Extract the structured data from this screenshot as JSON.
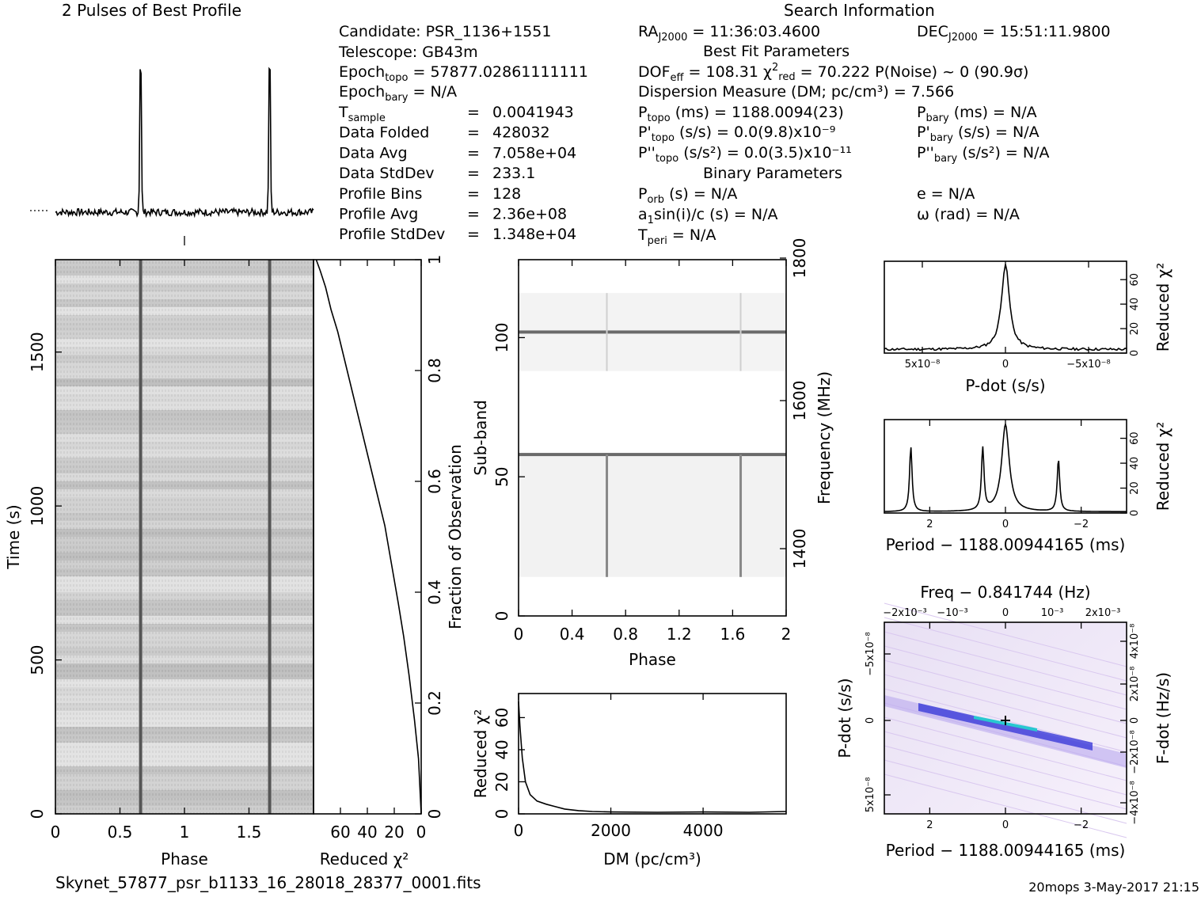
{
  "footer": {
    "filename": "Skynet_57877_psr_b1133_16_28018_28377_0001.fits",
    "stamp": "20mops  3-May-2017 21:15"
  },
  "search_info": {
    "heading": "Search Information",
    "candidate": "Candidate:  PSR_1136+1551",
    "telescope": "Telescope:  GB43m",
    "epoch_topo": "57877.02861111111",
    "epoch_bary": "N/A",
    "rows": [
      {
        "label": "T_sample",
        "value": "0.0041943"
      },
      {
        "label": "Data Folded",
        "value": "428032"
      },
      {
        "label": "Data Avg",
        "value": "7.058e+04"
      },
      {
        "label": "Data StdDev",
        "value": "233.1"
      },
      {
        "label": "Profile Bins",
        "value": "128"
      },
      {
        "label": "Profile Avg",
        "value": "2.36e+08"
      },
      {
        "label": "Profile StdDev",
        "value": "1.348e+04"
      }
    ],
    "ra": "11:36:03.4600",
    "dec": "15:51:11.9800",
    "best_fit_heading": "Best Fit Parameters",
    "dof_eff": "108.31",
    "chi2_red": "70.222",
    "p_noise": "P(Noise) ~ 0   (90.9σ)",
    "dm_line": "Dispersion Measure (DM; pc/cm³) = 7.566",
    "p_topo": "1188.0094(23)",
    "p_bary": "N/A",
    "pdot_topo": "0.0(9.8)x10⁻⁹",
    "pdot_bary": "N/A",
    "pddot_topo": "0.0(3.5)x10⁻¹¹",
    "pddot_bary": "N/A",
    "binary_heading": "Binary Parameters",
    "p_orb": "N/A",
    "a1sini": "N/A",
    "t_peri": "N/A",
    "ecc": "N/A",
    "omega": "N/A"
  },
  "chart_data": [
    {
      "id": "profile",
      "type": "line",
      "title": "2 Pulses of Best Profile",
      "xlabel": "",
      "ylabel": "",
      "xlim": [
        0,
        2
      ],
      "peaks": [
        {
          "phase": 0.66,
          "height": 1.0
        },
        {
          "phase": 1.66,
          "height": 1.0
        }
      ],
      "baseline": 0.0
    },
    {
      "id": "time-phase",
      "type": "heatmap",
      "xlabel": "Phase",
      "ylabel": "Time (s)",
      "xlim": [
        0,
        2
      ],
      "ylim": [
        0,
        1800
      ],
      "xticks": [
        "0",
        "0.5",
        "1",
        "1.5"
      ],
      "yticks": [
        "0",
        "500",
        "1000",
        "1500"
      ],
      "pulse_phases": [
        0.66,
        1.66
      ]
    },
    {
      "id": "cumulative-chi2",
      "type": "line",
      "xlabel": "Reduced χ²",
      "ylabel": "Fraction of Observation",
      "xlim": [
        80,
        0
      ],
      "ylim": [
        0,
        1
      ],
      "xticks": [
        "60",
        "40",
        "20",
        "0"
      ],
      "yticks": [
        "0",
        "0.2",
        "0.4",
        "0.6",
        "0.8",
        "1"
      ],
      "x": [
        0,
        2,
        5,
        9,
        13,
        17,
        22,
        27,
        33,
        39,
        45,
        51,
        57,
        62,
        67,
        71,
        75,
        78
      ],
      "y": [
        0,
        0.1,
        0.17,
        0.25,
        0.32,
        0.38,
        0.45,
        0.52,
        0.58,
        0.64,
        0.7,
        0.76,
        0.82,
        0.87,
        0.91,
        0.95,
        0.98,
        1.0
      ]
    },
    {
      "id": "subband-phase",
      "type": "heatmap",
      "xlabel": "Phase",
      "ylabel": "Sub-band",
      "y2label": "Frequency (MHz)",
      "xlim": [
        0,
        2
      ],
      "ylim": [
        0,
        128
      ],
      "xticks": [
        "0",
        "0.4",
        "0.8",
        "1.2",
        "1.6",
        "2"
      ],
      "yticks": [
        "0",
        "50",
        "100"
      ],
      "y2ticks": [
        "1400",
        "1600",
        "1800"
      ],
      "bright_rows": [
        58,
        102
      ],
      "pulse_phases": [
        0.66,
        1.66
      ]
    },
    {
      "id": "dm-chi2",
      "type": "line",
      "xlabel": "DM (pc/cm³)",
      "ylabel": "Reduced χ²",
      "xlim": [
        0,
        5800
      ],
      "ylim": [
        0,
        75
      ],
      "xticks": [
        "0",
        "2000",
        "4000"
      ],
      "yticks": [
        "0",
        "20",
        "40",
        "60"
      ],
      "x": [
        0,
        30,
        80,
        150,
        250,
        400,
        600,
        800,
        1000,
        1300,
        1600,
        2000,
        3000,
        4000,
        5000,
        5800
      ],
      "y": [
        70,
        55,
        35,
        20,
        12,
        8,
        6,
        4.5,
        3,
        2,
        1.5,
        1.2,
        1.0,
        1.2,
        1.0,
        1.5
      ]
    },
    {
      "id": "pdot-chi2",
      "type": "line",
      "xlabel": "P-dot (s/s)",
      "ylabel": "Reduced χ²",
      "xlim": [
        8e-09,
        -8e-09
      ],
      "ylim": [
        0,
        75
      ],
      "xticks": [
        "5x10⁻⁸",
        "0",
        "−5x10⁻⁸"
      ],
      "yticks": [
        "0",
        "20",
        "40",
        "60"
      ],
      "peak": {
        "x": 0,
        "y": 70
      }
    },
    {
      "id": "period-chi2",
      "type": "line",
      "xlabel": "Period − 1188.00944165 (ms)",
      "ylabel": "Reduced χ²",
      "xlim": [
        3.2,
        -3.2
      ],
      "ylim": [
        0,
        75
      ],
      "xticks": [
        "2",
        "0",
        "−2"
      ],
      "yticks": [
        "0",
        "20",
        "40",
        "60"
      ],
      "peaks": [
        {
          "x": 2.5,
          "y": 52
        },
        {
          "x": 0.6,
          "y": 50
        },
        {
          "x": 0,
          "y": 70
        },
        {
          "x": -1.4,
          "y": 42
        }
      ]
    },
    {
      "id": "period-pdot",
      "type": "heatmap",
      "title": "Freq − 0.841744 (Hz)",
      "xlabel": "Period − 1188.00944165 (ms)",
      "ylabel": "P-dot (s/s)",
      "y2label": "F-dot (Hz/s)",
      "xlim": [
        3.2,
        -3.2
      ],
      "xticks": [
        "2",
        "0",
        "−2"
      ],
      "x2ticks": [
        "−2x10⁻³",
        "−10⁻³",
        "0",
        "10⁻³",
        "2x10⁻³"
      ],
      "yticks": [
        "−5x10⁻⁸",
        "0",
        "5x10⁻⁸"
      ],
      "y2ticks": [
        "4x10⁻⁸",
        "2x10⁻⁸",
        "0",
        "−2x10⁻⁸",
        "−4x10⁻⁸"
      ]
    }
  ]
}
